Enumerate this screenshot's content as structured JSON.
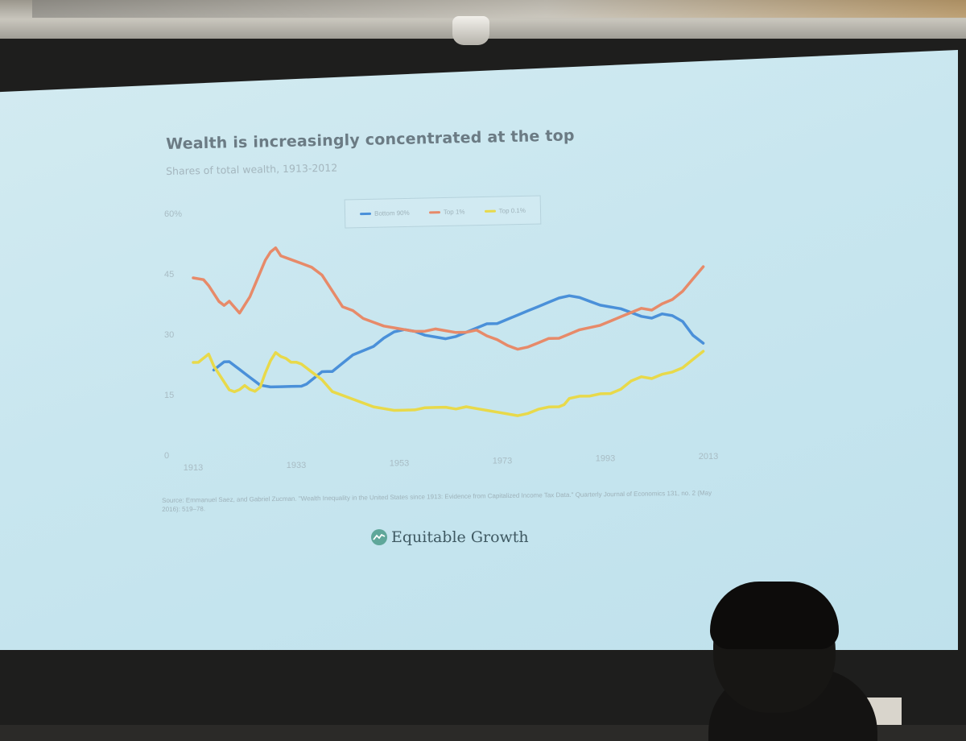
{
  "chart_data": {
    "type": "line",
    "title": "Wealth is increasingly concentrated at the top",
    "subtitle": "Shares of total wealth, 1913-2012",
    "xlabel": "",
    "ylabel": "",
    "xlim": [
      1913,
      2013
    ],
    "ylim": [
      0,
      60
    ],
    "x_ticks": [
      "1913",
      "1933",
      "1953",
      "1973",
      "1993",
      "2013"
    ],
    "y_ticks": [
      "0",
      "15",
      "30",
      "45",
      "60%"
    ],
    "legend_position": "top-center",
    "grid": false,
    "series": [
      {
        "name": "Bottom 90%",
        "color": "#4a90d9",
        "points": [
          [
            1917,
            21
          ],
          [
            1918,
            22
          ],
          [
            1919,
            23
          ],
          [
            1920,
            23
          ],
          [
            1921,
            22
          ],
          [
            1922,
            21
          ],
          [
            1923,
            20
          ],
          [
            1924,
            19
          ],
          [
            1925,
            18
          ],
          [
            1926,
            17
          ],
          [
            1928,
            16.5
          ],
          [
            1930,
            16.5
          ],
          [
            1932,
            16.5
          ],
          [
            1934,
            16.5
          ],
          [
            1935,
            17
          ],
          [
            1936,
            18
          ],
          [
            1937,
            19
          ],
          [
            1938,
            20
          ],
          [
            1939,
            20
          ],
          [
            1940,
            20
          ],
          [
            1942,
            22
          ],
          [
            1944,
            24
          ],
          [
            1946,
            25
          ],
          [
            1948,
            26
          ],
          [
            1950,
            28
          ],
          [
            1952,
            29.5
          ],
          [
            1954,
            30
          ],
          [
            1956,
            29.5
          ],
          [
            1958,
            28.5
          ],
          [
            1960,
            28
          ],
          [
            1962,
            27.5
          ],
          [
            1964,
            28
          ],
          [
            1966,
            29
          ],
          [
            1968,
            30
          ],
          [
            1970,
            31
          ],
          [
            1972,
            31
          ],
          [
            1974,
            32
          ],
          [
            1976,
            33
          ],
          [
            1978,
            34
          ],
          [
            1980,
            35
          ],
          [
            1982,
            36
          ],
          [
            1984,
            37
          ],
          [
            1986,
            37.5
          ],
          [
            1988,
            37
          ],
          [
            1990,
            36
          ],
          [
            1992,
            35
          ],
          [
            1994,
            34.5
          ],
          [
            1996,
            34
          ],
          [
            1998,
            33
          ],
          [
            2000,
            32
          ],
          [
            2002,
            31.5
          ],
          [
            2004,
            32.5
          ],
          [
            2006,
            32
          ],
          [
            2008,
            30.5
          ],
          [
            2010,
            27
          ],
          [
            2012,
            25
          ]
        ]
      },
      {
        "name": "Top 1%",
        "color": "#e78a69",
        "points": [
          [
            1913,
            44
          ],
          [
            1915,
            43.5
          ],
          [
            1916,
            42
          ],
          [
            1917,
            40
          ],
          [
            1918,
            38
          ],
          [
            1919,
            37
          ],
          [
            1920,
            38
          ],
          [
            1921,
            36.5
          ],
          [
            1922,
            35
          ],
          [
            1923,
            37
          ],
          [
            1924,
            39
          ],
          [
            1925,
            42
          ],
          [
            1926,
            45
          ],
          [
            1927,
            48
          ],
          [
            1928,
            50
          ],
          [
            1929,
            51
          ],
          [
            1930,
            49
          ],
          [
            1932,
            48
          ],
          [
            1934,
            47
          ],
          [
            1936,
            46
          ],
          [
            1938,
            44
          ],
          [
            1940,
            40
          ],
          [
            1942,
            36
          ],
          [
            1944,
            35
          ],
          [
            1946,
            33
          ],
          [
            1948,
            32
          ],
          [
            1950,
            31
          ],
          [
            1952,
            30.5
          ],
          [
            1954,
            30
          ],
          [
            1956,
            29.5
          ],
          [
            1958,
            29.5
          ],
          [
            1960,
            30
          ],
          [
            1962,
            29.5
          ],
          [
            1964,
            29
          ],
          [
            1966,
            29
          ],
          [
            1968,
            29.5
          ],
          [
            1970,
            28
          ],
          [
            1972,
            27
          ],
          [
            1974,
            25.5
          ],
          [
            1975,
            25
          ],
          [
            1976,
            24.5
          ],
          [
            1978,
            25
          ],
          [
            1980,
            26
          ],
          [
            1982,
            27
          ],
          [
            1984,
            27
          ],
          [
            1986,
            28
          ],
          [
            1988,
            29
          ],
          [
            1990,
            29.5
          ],
          [
            1992,
            30
          ],
          [
            1994,
            31
          ],
          [
            1996,
            32
          ],
          [
            1998,
            33
          ],
          [
            2000,
            34
          ],
          [
            2002,
            33.5
          ],
          [
            2004,
            35
          ],
          [
            2006,
            36
          ],
          [
            2008,
            38
          ],
          [
            2010,
            41
          ],
          [
            2012,
            44
          ]
        ]
      },
      {
        "name": "Top 0.1%",
        "color": "#e8d94a",
        "points": [
          [
            1913,
            23
          ],
          [
            1914,
            23
          ],
          [
            1915,
            24
          ],
          [
            1916,
            25
          ],
          [
            1917,
            22
          ],
          [
            1918,
            20
          ],
          [
            1919,
            18
          ],
          [
            1920,
            16
          ],
          [
            1921,
            15.5
          ],
          [
            1922,
            16
          ],
          [
            1923,
            17
          ],
          [
            1924,
            16
          ],
          [
            1925,
            15.5
          ],
          [
            1926,
            16.5
          ],
          [
            1927,
            20
          ],
          [
            1928,
            23
          ],
          [
            1929,
            25
          ],
          [
            1930,
            24
          ],
          [
            1931,
            23.5
          ],
          [
            1932,
            22.5
          ],
          [
            1933,
            22.5
          ],
          [
            1934,
            22
          ],
          [
            1935,
            21
          ],
          [
            1936,
            20
          ],
          [
            1937,
            19
          ],
          [
            1938,
            18
          ],
          [
            1940,
            15
          ],
          [
            1942,
            14
          ],
          [
            1944,
            13
          ],
          [
            1946,
            12
          ],
          [
            1948,
            11
          ],
          [
            1950,
            10.5
          ],
          [
            1952,
            10
          ],
          [
            1954,
            10
          ],
          [
            1956,
            10
          ],
          [
            1958,
            10.5
          ],
          [
            1960,
            10.5
          ],
          [
            1962,
            10.5
          ],
          [
            1964,
            10
          ],
          [
            1966,
            10.5
          ],
          [
            1968,
            10
          ],
          [
            1970,
            9.5
          ],
          [
            1972,
            9
          ],
          [
            1974,
            8.5
          ],
          [
            1976,
            8
          ],
          [
            1978,
            8.5
          ],
          [
            1980,
            9.5
          ],
          [
            1982,
            10
          ],
          [
            1984,
            10
          ],
          [
            1985,
            10.5
          ],
          [
            1986,
            12
          ],
          [
            1988,
            12.5
          ],
          [
            1990,
            12.5
          ],
          [
            1992,
            13
          ],
          [
            1994,
            13
          ],
          [
            1996,
            14
          ],
          [
            1998,
            16
          ],
          [
            2000,
            17
          ],
          [
            2002,
            16.5
          ],
          [
            2004,
            17.5
          ],
          [
            2006,
            18
          ],
          [
            2008,
            19
          ],
          [
            2010,
            21
          ],
          [
            2012,
            23
          ]
        ]
      }
    ],
    "source": "Source: Emmanuel Saez, and Gabriel Zucman. \"Wealth Inequality in the United States since 1913: Evidence from Capitalized Income Tax Data.\" Quarterly Journal of Economics 131, no. 2 (May 2016): 519–78."
  },
  "brand": {
    "name": "Equitable Growth",
    "logo_icon": "equitable-growth-logo",
    "color": "#3f5962"
  },
  "colors": {
    "screen": "#c9e6ef",
    "axis_text": "#a8bcc4"
  }
}
